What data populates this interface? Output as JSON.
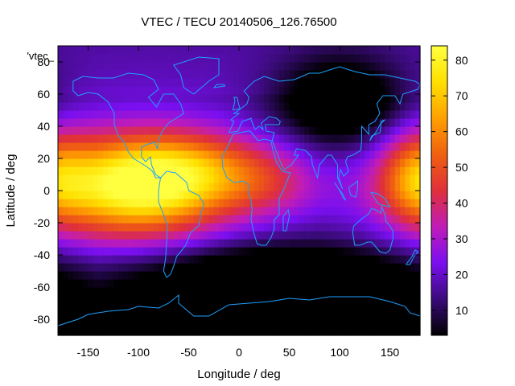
{
  "chart_data": {
    "type": "heatmap",
    "title": "VTEC / TECU 20140506_126.76500",
    "xlabel": "Longitude / deg",
    "ylabel": "Latitude / deg",
    "xlim": [
      -180,
      180
    ],
    "ylim": [
      -90,
      90
    ],
    "x_ticks": [
      -150,
      -100,
      -50,
      0,
      50,
      100,
      150
    ],
    "y_ticks": [
      -80,
      -60,
      -40,
      -20,
      0,
      20,
      40,
      60,
      80
    ],
    "key_label": "'vtec_",
    "colorbar": {
      "range": [
        3,
        84
      ],
      "ticks": [
        10,
        20,
        30,
        40,
        50,
        60,
        70,
        80
      ],
      "palette": [
        "#000000",
        "#3a0b7a",
        "#7a0ff0",
        "#c01cb8",
        "#e0303a",
        "#f06010",
        "#ffa000",
        "#ffe000",
        "#ffff40"
      ]
    },
    "coastline_color": "#1ea0ff",
    "anomalies": [
      {
        "lon": -100,
        "lat": 3,
        "peak": 84,
        "slon": 65,
        "slat": 22
      },
      {
        "lon": -40,
        "lat": 15,
        "peak": 38,
        "slon": 55,
        "slat": 15
      },
      {
        "lon": 30,
        "lat": 5,
        "peak": 32,
        "slon": 35,
        "slat": 15
      },
      {
        "lon": 175,
        "lat": 10,
        "peak": 45,
        "slon": 25,
        "slat": 20
      },
      {
        "lon": 100,
        "lat": 55,
        "peak": -8,
        "slon": 45,
        "slat": 20
      },
      {
        "lon": 40,
        "lat": -60,
        "peak": -12,
        "slon": 100,
        "slat": 20
      }
    ]
  }
}
